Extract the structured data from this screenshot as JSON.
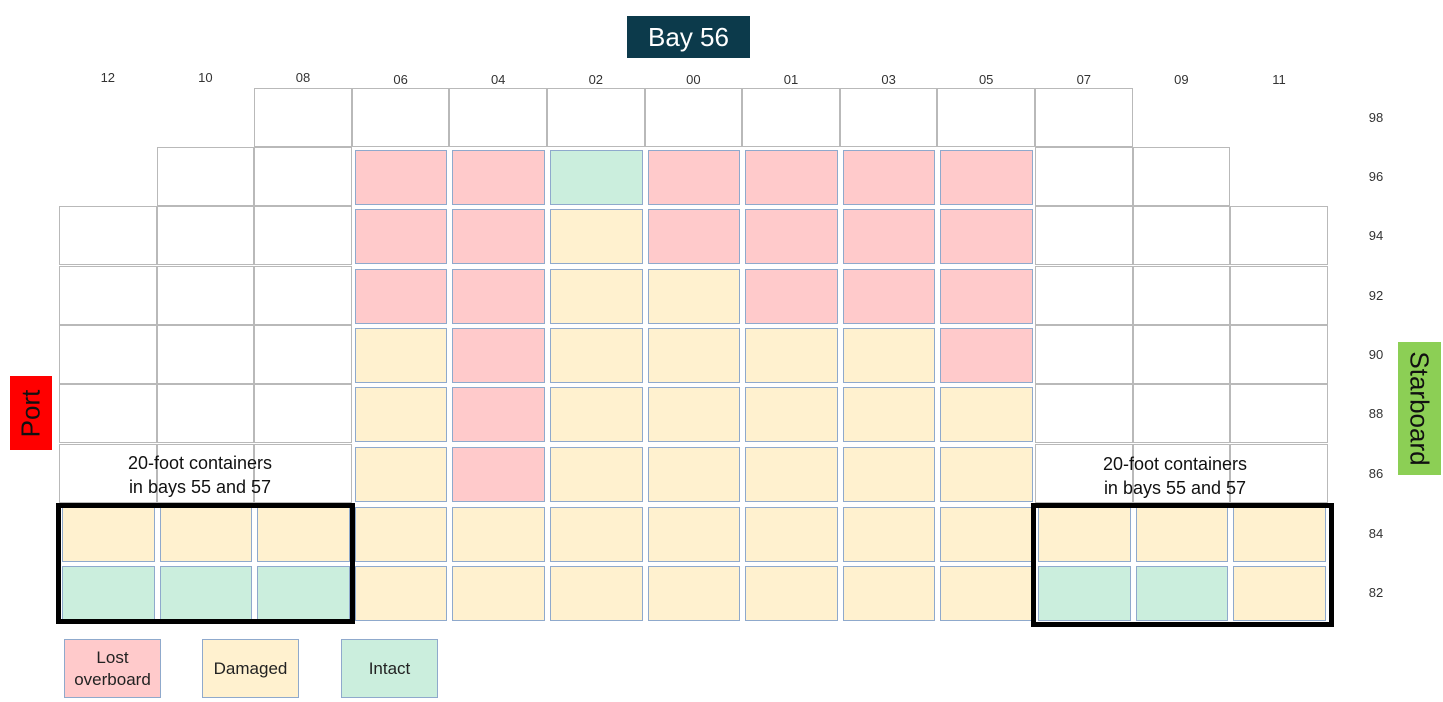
{
  "title": "Bay 56",
  "side_labels": {
    "port": "Port",
    "starboard": "Starboard"
  },
  "colors": {
    "title_bg": "#0c3a4b",
    "port_bg": "#ff0000",
    "starboard_bg": "#8ccf55",
    "lost": "#ffcacb",
    "damaged": "#fff1cf",
    "intact": "#cbeedd"
  },
  "columns": [
    "12",
    "10",
    "08",
    "06",
    "04",
    "02",
    "00",
    "01",
    "03",
    "05",
    "07",
    "09",
    "11"
  ],
  "rows": [
    "98",
    "96",
    "94",
    "92",
    "90",
    "88",
    "86",
    "84",
    "82"
  ],
  "grid_status": {
    "96": [
      "",
      "",
      "",
      "L",
      "L",
      "I",
      "L",
      "L",
      "L",
      "L",
      "",
      "",
      ""
    ],
    "94": [
      "",
      "",
      "",
      "L",
      "L",
      "D",
      "L",
      "L",
      "L",
      "L",
      "",
      "",
      ""
    ],
    "92": [
      "",
      "",
      "",
      "L",
      "L",
      "D",
      "D",
      "L",
      "L",
      "L",
      "",
      "",
      ""
    ],
    "90": [
      "",
      "",
      "",
      "D",
      "L",
      "D",
      "D",
      "D",
      "D",
      "L",
      "",
      "",
      ""
    ],
    "88": [
      "",
      "",
      "",
      "D",
      "L",
      "D",
      "D",
      "D",
      "D",
      "D",
      "",
      "",
      ""
    ],
    "86": [
      "",
      "",
      "",
      "D",
      "L",
      "D",
      "D",
      "D",
      "D",
      "D",
      "",
      "",
      ""
    ],
    "84": [
      "D",
      "D",
      "D",
      "D",
      "D",
      "D",
      "D",
      "D",
      "D",
      "D",
      "D",
      "D",
      "D"
    ],
    "82": [
      "I",
      "I",
      "I",
      "D",
      "D",
      "D",
      "D",
      "D",
      "D",
      "D",
      "I",
      "I",
      "D"
    ]
  },
  "group_notes": {
    "left": "20-foot containers\nin bays 55 and 57",
    "right": "20-foot containers\nin bays 55 and 57"
  },
  "legend": [
    {
      "key": "lost",
      "label": "Lost\noverboard"
    },
    {
      "key": "damaged",
      "label": "Damaged"
    },
    {
      "key": "intact",
      "label": "Intact"
    }
  ]
}
